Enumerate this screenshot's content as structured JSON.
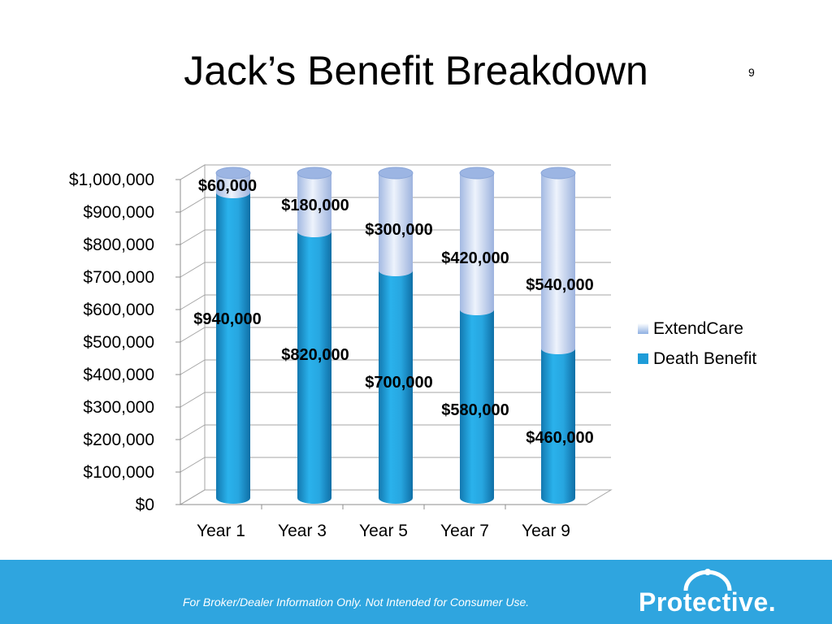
{
  "slide": {
    "title": "Jack’s Benefit Breakdown",
    "number": "9"
  },
  "footer": {
    "disclaimer": "For Broker/Dealer Information Only.  Not Intended for Consumer Use.",
    "logo_text": "Protective.",
    "background_color": "#2fa5df"
  },
  "chart_data": {
    "type": "bar",
    "stacked": true,
    "style": "3d-cylinder",
    "categories": [
      "Year 1",
      "Year 3",
      "Year 5",
      "Year 7",
      "Year 9"
    ],
    "series": [
      {
        "name": "Death Benefit",
        "color": "#1e9cd8",
        "values": [
          940000,
          820000,
          700000,
          580000,
          460000
        ],
        "labels": [
          "$940,000",
          "$820,000",
          "$700,000",
          "$580,000",
          "$460,000"
        ]
      },
      {
        "name": "ExtendCare",
        "color": "#c9d8f2",
        "values": [
          60000,
          180000,
          300000,
          420000,
          540000
        ],
        "labels": [
          "$60,000",
          "$180,000",
          "$300,000",
          "$420,000",
          "$540,000"
        ]
      }
    ],
    "ylim": [
      0,
      1000000
    ],
    "yticks": [
      0,
      100000,
      200000,
      300000,
      400000,
      500000,
      600000,
      700000,
      800000,
      900000,
      1000000
    ],
    "ytick_labels": [
      "$0",
      "$100,000",
      "$200,000",
      "$300,000",
      "$400,000",
      "$500,000",
      "$600,000",
      "$700,000",
      "$800,000",
      "$900,000",
      "$1,000,000"
    ],
    "grid": true,
    "legend_position": "right",
    "legend_order": [
      "ExtendCare",
      "Death Benefit"
    ]
  }
}
